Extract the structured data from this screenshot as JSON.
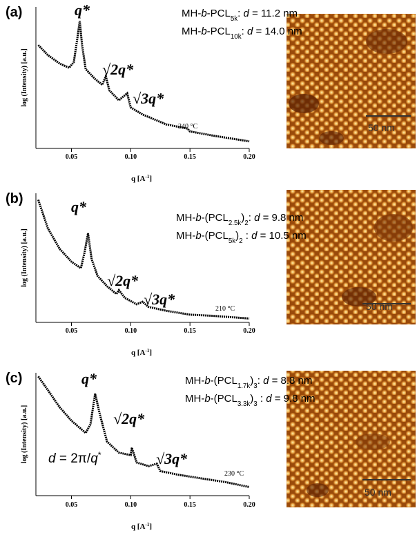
{
  "chart_data": [
    {
      "type": "line",
      "panel_label": "(a)",
      "color": "#000000",
      "y_label": "log (Intensity) [a.u.]",
      "x_label": [
        {
          "text": "q [A"
        },
        {
          "text": "-1",
          "sup": true
        },
        {
          "text": "]"
        }
      ],
      "x": [
        0.022,
        0.03,
        0.04,
        0.048,
        0.052,
        0.055,
        0.057,
        0.059,
        0.062,
        0.07,
        0.076,
        0.079,
        0.082,
        0.09,
        0.097,
        0.1,
        0.11,
        0.13,
        0.148,
        0.15,
        0.17,
        0.2
      ],
      "values": [
        73,
        66,
        60,
        57,
        61,
        78,
        90,
        73,
        56,
        49,
        45,
        51,
        41,
        34,
        39,
        29,
        24,
        17,
        14,
        12,
        9,
        5
      ],
      "xlim": [
        0.02,
        0.2
      ],
      "ylim": [
        0,
        100
      ],
      "xticks": [
        0.05,
        {
          "value": 0.1,
          "label": "0.10"
        },
        0.15,
        {
          "value": 0.2,
          "label": "0.20"
        }
      ],
      "peaks": [
        "q*",
        "√2q*",
        "√3q*"
      ],
      "temperature": "240 °C",
      "sample_labels": [
        [
          {
            "text": "MH-"
          },
          {
            "text": "b",
            "italic": true
          },
          {
            "text": "-PCL"
          },
          {
            "text": "5k",
            "sub": true
          },
          {
            "text": ": "
          },
          {
            "text": "d",
            "italic": true
          },
          {
            "text": " = 11.2 nm"
          }
        ],
        [
          {
            "text": "MH-"
          },
          {
            "text": "b",
            "italic": true
          },
          {
            "text": "-PCL"
          },
          {
            "text": "10k",
            "sub": true
          },
          {
            "text": ": "
          },
          {
            "text": "d",
            "italic": true
          },
          {
            "text": " = 14.0 nm"
          }
        ]
      ],
      "scale_bar": "50 nm"
    },
    {
      "type": "line",
      "panel_label": "(b)",
      "color": "#000000",
      "y_label": "log (Intensity) [a.u.]",
      "x_label": [
        {
          "text": "q [A"
        },
        {
          "text": "-1",
          "sup": true
        },
        {
          "text": "]"
        }
      ],
      "x": [
        0.022,
        0.03,
        0.04,
        0.05,
        0.058,
        0.061,
        0.064,
        0.067,
        0.072,
        0.08,
        0.088,
        0.09,
        0.095,
        0.105,
        0.11,
        0.115,
        0.13,
        0.15,
        0.17,
        0.2
      ],
      "values": [
        95,
        73,
        57,
        47,
        42,
        54,
        69,
        49,
        36,
        28,
        22,
        25,
        19,
        14,
        16,
        12,
        9,
        6,
        5,
        3
      ],
      "xlim": [
        0.02,
        0.2
      ],
      "ylim": [
        0,
        100
      ],
      "xticks": [
        0.05,
        {
          "value": 0.1,
          "label": "0.10"
        },
        0.15,
        {
          "value": 0.2,
          "label": "0.20"
        }
      ],
      "peaks": [
        "q*",
        "√2q*",
        "√3q*"
      ],
      "temperature": "210 °C",
      "sample_labels": [
        [
          {
            "text": "MH-"
          },
          {
            "text": "b",
            "italic": true
          },
          {
            "text": "-(PCL"
          },
          {
            "text": "2.5k",
            "sub": true
          },
          {
            "text": ")"
          },
          {
            "text": "2",
            "sub": true
          },
          {
            "text": ": "
          },
          {
            "text": "d",
            "italic": true
          },
          {
            "text": " = 9.8 nm"
          }
        ],
        [
          {
            "text": "MH-"
          },
          {
            "text": "b",
            "italic": true
          },
          {
            "text": "-(PCL"
          },
          {
            "text": "5k",
            "sub": true
          },
          {
            "text": ")"
          },
          {
            "text": "2",
            "sub": true
          },
          {
            "text": " : "
          },
          {
            "text": "d",
            "italic": true
          },
          {
            "text": " = 10.5 nm"
          }
        ]
      ],
      "scale_bar": "50 nm"
    },
    {
      "type": "line",
      "panel_label": "(c)",
      "color": "#000000",
      "y_label": "log (Intensity) [a.u.]",
      "x_label": [
        {
          "text": "q [A"
        },
        {
          "text": "-1",
          "sup": true
        },
        {
          "text": "]"
        }
      ],
      "x": [
        0.022,
        0.03,
        0.04,
        0.05,
        0.062,
        0.066,
        0.07,
        0.074,
        0.08,
        0.09,
        0.1,
        0.101,
        0.105,
        0.115,
        0.122,
        0.125,
        0.14,
        0.16,
        0.18,
        0.2
      ],
      "values": [
        97,
        86,
        72,
        61,
        51,
        58,
        83,
        66,
        44,
        35,
        33,
        39,
        27,
        24,
        26,
        20,
        17,
        14,
        11,
        7
      ],
      "xlim": [
        0.02,
        0.2
      ],
      "ylim": [
        0,
        100
      ],
      "xticks": [
        0.05,
        {
          "value": 0.1,
          "label": "0.10"
        },
        0.15,
        {
          "value": 0.2,
          "label": "0.20"
        }
      ],
      "peaks": [
        "q*",
        "√2q*",
        "√3q*"
      ],
      "temperature": "230 °C",
      "formula": [
        {
          "text": "d",
          "italic": true
        },
        {
          "text": " = 2π/"
        },
        {
          "text": "q",
          "italic": true
        },
        {
          "text": "*",
          "sup": true
        }
      ],
      "sample_labels": [
        [
          {
            "text": "MH-"
          },
          {
            "text": "b",
            "italic": true
          },
          {
            "text": "-(PCL"
          },
          {
            "text": "1.7k",
            "sub": true
          },
          {
            "text": ")"
          },
          {
            "text": "3",
            "sub": true
          },
          {
            "text": ": "
          },
          {
            "text": "d",
            "italic": true
          },
          {
            "text": " = 8.8 nm"
          }
        ],
        [
          {
            "text": "MH-"
          },
          {
            "text": "b",
            "italic": true
          },
          {
            "text": "-(PCL"
          },
          {
            "text": "3.3k",
            "sub": true
          },
          {
            "text": ")"
          },
          {
            "text": "3",
            "sub": true
          },
          {
            "text": " : "
          },
          {
            "text": "d",
            "italic": true
          },
          {
            "text": " = 9.8 nm"
          }
        ]
      ],
      "scale_bar": "50 nm"
    }
  ]
}
